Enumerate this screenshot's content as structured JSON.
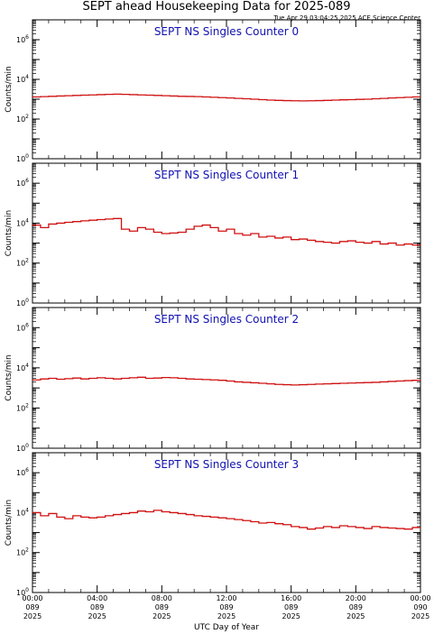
{
  "header": {
    "title": "SEPT ahead Housekeeping Data for 2025-089",
    "timestamp": "Tue Apr 29 03:04:25 2025 ACE Science Center"
  },
  "colors": {
    "series": "#d01010",
    "panel_title": "#1010b0",
    "axes": "#000000"
  },
  "chart_data": [
    {
      "type": "line",
      "title": "SEPT NS Singles Counter 0",
      "ylabel": "Counts/min",
      "xlabel": "UTC Day of Year",
      "y_scale": "log",
      "ylim": [
        1,
        10000000
      ],
      "y_ticks": [
        {
          "v": 1,
          "label": "10^0"
        },
        {
          "v": 100,
          "label": "10^2"
        },
        {
          "v": 10000,
          "label": "10^4"
        },
        {
          "v": 1000000,
          "label": "10^6"
        }
      ],
      "xlim_hours": [
        0,
        24
      ],
      "x_ticks": [
        {
          "h": 0,
          "time": "00:00",
          "doy": "089",
          "year": "2025"
        },
        {
          "h": 4,
          "time": "04:00",
          "doy": "089",
          "year": "2025"
        },
        {
          "h": 8,
          "time": "08:00",
          "doy": "089",
          "year": "2025"
        },
        {
          "h": 12,
          "time": "12:00",
          "doy": "089",
          "year": "2025"
        },
        {
          "h": 16,
          "time": "16:00",
          "doy": "089",
          "year": "2025"
        },
        {
          "h": 20,
          "time": "20:00",
          "doy": "089",
          "year": "2025"
        },
        {
          "h": 24,
          "time": "00:00",
          "doy": "090",
          "year": "2025"
        }
      ],
      "series": [
        {
          "step_hours": 0.5,
          "values": [
            1300,
            1350,
            1400,
            1450,
            1500,
            1550,
            1600,
            1650,
            1700,
            1750,
            1800,
            1750,
            1700,
            1650,
            1600,
            1550,
            1500,
            1450,
            1400,
            1380,
            1350,
            1300,
            1250,
            1200,
            1150,
            1100,
            1050,
            1000,
            950,
            900,
            870,
            850,
            830,
            820,
            830,
            850,
            870,
            900,
            930,
            950,
            980,
            1000,
            1050,
            1100,
            1150,
            1200,
            1250,
            1300
          ]
        }
      ]
    },
    {
      "type": "line",
      "title": "SEPT NS Singles Counter 1",
      "ylabel": "Counts/min",
      "xlabel": "UTC Day of Year",
      "y_scale": "log",
      "ylim": [
        1,
        10000000
      ],
      "y_ticks": [
        {
          "v": 1,
          "label": "10^0"
        },
        {
          "v": 100,
          "label": "10^2"
        },
        {
          "v": 10000,
          "label": "10^4"
        },
        {
          "v": 1000000,
          "label": "10^6"
        }
      ],
      "xlim_hours": [
        0,
        24
      ],
      "x_ticks": [
        {
          "h": 0,
          "time": "00:00",
          "doy": "089",
          "year": "2025"
        },
        {
          "h": 4,
          "time": "04:00",
          "doy": "089",
          "year": "2025"
        },
        {
          "h": 8,
          "time": "08:00",
          "doy": "089",
          "year": "2025"
        },
        {
          "h": 12,
          "time": "12:00",
          "doy": "089",
          "year": "2025"
        },
        {
          "h": 16,
          "time": "16:00",
          "doy": "089",
          "year": "2025"
        },
        {
          "h": 20,
          "time": "20:00",
          "doy": "089",
          "year": "2025"
        },
        {
          "h": 24,
          "time": "00:00",
          "doy": "090",
          "year": "2025"
        }
      ],
      "series": [
        {
          "step_hours": 0.5,
          "values": [
            8000,
            6000,
            9000,
            10000,
            11000,
            12000,
            13000,
            14000,
            15000,
            16000,
            17000,
            5000,
            4000,
            6000,
            5000,
            3500,
            3000,
            3200,
            3500,
            5000,
            7000,
            8000,
            6000,
            4000,
            5000,
            3000,
            2500,
            3000,
            2000,
            2200,
            1800,
            2000,
            1500,
            1600,
            1400,
            1200,
            1100,
            1000,
            1200,
            1300,
            1100,
            1000,
            1200,
            900,
            1000,
            800,
            900,
            800
          ]
        }
      ]
    },
    {
      "type": "line",
      "title": "SEPT NS Singles Counter 2",
      "ylabel": "Counts/min",
      "xlabel": "UTC Day of Year",
      "y_scale": "log",
      "ylim": [
        1,
        10000000
      ],
      "y_ticks": [
        {
          "v": 1,
          "label": "10^0"
        },
        {
          "v": 100,
          "label": "10^2"
        },
        {
          "v": 10000,
          "label": "10^4"
        },
        {
          "v": 1000000,
          "label": "10^6"
        }
      ],
      "xlim_hours": [
        0,
        24
      ],
      "x_ticks": [
        {
          "h": 0,
          "time": "00:00",
          "doy": "089",
          "year": "2025"
        },
        {
          "h": 4,
          "time": "04:00",
          "doy": "089",
          "year": "2025"
        },
        {
          "h": 8,
          "time": "08:00",
          "doy": "089",
          "year": "2025"
        },
        {
          "h": 12,
          "time": "12:00",
          "doy": "089",
          "year": "2025"
        },
        {
          "h": 16,
          "time": "16:00",
          "doy": "089",
          "year": "2025"
        },
        {
          "h": 20,
          "time": "20:00",
          "doy": "089",
          "year": "2025"
        },
        {
          "h": 24,
          "time": "00:00",
          "doy": "090",
          "year": "2025"
        }
      ],
      "series": [
        {
          "step_hours": 0.5,
          "values": [
            2500,
            2800,
            3000,
            2700,
            2900,
            3100,
            2800,
            3000,
            3200,
            3000,
            2800,
            3000,
            3200,
            3400,
            3000,
            3100,
            3300,
            3200,
            3000,
            2800,
            2700,
            2600,
            2500,
            2400,
            2200,
            2000,
            1900,
            1800,
            1700,
            1600,
            1500,
            1450,
            1400,
            1450,
            1500,
            1550,
            1600,
            1650,
            1700,
            1750,
            1800,
            1850,
            1900,
            2000,
            2100,
            2200,
            2300,
            2400
          ]
        }
      ]
    },
    {
      "type": "line",
      "title": "SEPT NS Singles Counter 3",
      "ylabel": "Counts/min",
      "xlabel": "UTC Day of Year",
      "y_scale": "log",
      "ylim": [
        1,
        10000000
      ],
      "y_ticks": [
        {
          "v": 1,
          "label": "10^0"
        },
        {
          "v": 100,
          "label": "10^2"
        },
        {
          "v": 10000,
          "label": "10^4"
        },
        {
          "v": 1000000,
          "label": "10^6"
        }
      ],
      "xlim_hours": [
        0,
        24
      ],
      "x_ticks": [
        {
          "h": 0,
          "time": "00:00",
          "doy": "089",
          "year": "2025"
        },
        {
          "h": 4,
          "time": "04:00",
          "doy": "089",
          "year": "2025"
        },
        {
          "h": 8,
          "time": "08:00",
          "doy": "089",
          "year": "2025"
        },
        {
          "h": 12,
          "time": "12:00",
          "doy": "089",
          "year": "2025"
        },
        {
          "h": 16,
          "time": "16:00",
          "doy": "089",
          "year": "2025"
        },
        {
          "h": 20,
          "time": "20:00",
          "doy": "089",
          "year": "2025"
        },
        {
          "h": 24,
          "time": "00:00",
          "doy": "090",
          "year": "2025"
        }
      ],
      "series": [
        {
          "step_hours": 0.5,
          "values": [
            10000,
            7000,
            9000,
            6000,
            5000,
            7000,
            6000,
            5500,
            6000,
            7000,
            8000,
            9000,
            10000,
            12000,
            11000,
            13000,
            11000,
            10000,
            9000,
            8000,
            7000,
            6500,
            6000,
            5500,
            5000,
            4500,
            4000,
            3500,
            3000,
            3200,
            2800,
            2500,
            2000,
            1800,
            1500,
            1700,
            2000,
            1800,
            2200,
            2000,
            1800,
            1600,
            2000,
            1800,
            1700,
            1600,
            1500,
            1800
          ]
        }
      ]
    }
  ]
}
